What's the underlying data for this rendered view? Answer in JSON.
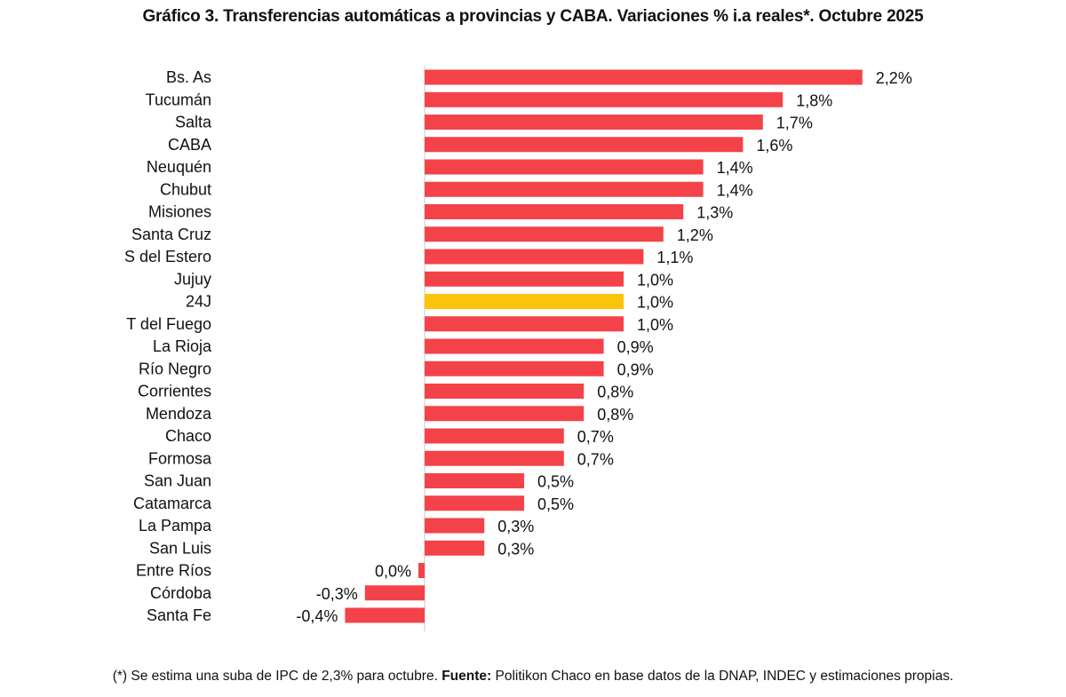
{
  "title": "Gráfico 3. Transferencias automáticas a provincias y CABA. Variaciones % i.a reales*. Octubre 2025",
  "footnote": {
    "note": "(*) Se estima una suba de IPC de 2,3% para octubre.",
    "source_label": "Fuente:",
    "source_text": "Politikon Chaco en base datos de la DNAP, INDEC y estimaciones propias."
  },
  "colors": {
    "bar": "#f44249",
    "highlight": "#fbc40a",
    "axis": "#c8c8c8"
  },
  "chart_data": {
    "type": "bar",
    "orientation": "horizontal",
    "title": "Gráfico 3. Transferencias automáticas a provincias y CABA. Variaciones % i.a reales*. Octubre 2025",
    "xlabel": "",
    "ylabel": "",
    "unit": "%",
    "xlim": [
      -0.4,
      2.2
    ],
    "grid": false,
    "legend": "none",
    "highlight_category": "24J",
    "categories": [
      "Bs. As",
      "Tucumán",
      "Salta",
      "CABA",
      "Neuquén",
      "Chubut",
      "Misiones",
      "Santa Cruz",
      "S del Estero",
      "Jujuy",
      "24J",
      "T del Fuego",
      "La Rioja",
      "Río Negro",
      "Corrientes",
      "Mendoza",
      "Chaco",
      "Formosa",
      "San Juan",
      "Catamarca",
      "La Pampa",
      "San Luis",
      "Entre Ríos",
      "Córdoba",
      "Santa Fe"
    ],
    "values": [
      2.2,
      1.8,
      1.7,
      1.6,
      1.4,
      1.4,
      1.3,
      1.2,
      1.1,
      1.0,
      1.0,
      1.0,
      0.9,
      0.9,
      0.8,
      0.8,
      0.7,
      0.7,
      0.5,
      0.5,
      0.3,
      0.3,
      0.0,
      -0.3,
      -0.4
    ],
    "labels": [
      "2,2%",
      "1,8%",
      "1,7%",
      "1,6%",
      "1,4%",
      "1,4%",
      "1,3%",
      "1,2%",
      "1,1%",
      "1,0%",
      "1,0%",
      "1,0%",
      "0,9%",
      "0,9%",
      "0,8%",
      "0,8%",
      "0,7%",
      "0,7%",
      "0,5%",
      "0,5%",
      "0,3%",
      "0,3%",
      "0,0%",
      "-0,3%",
      "-0,4%"
    ]
  }
}
